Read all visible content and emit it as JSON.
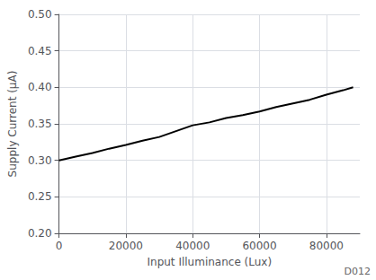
{
  "chart_data": {
    "type": "line",
    "x": [
      0,
      5000,
      10000,
      15000,
      20000,
      25000,
      30000,
      35000,
      40000,
      45000,
      50000,
      55000,
      60000,
      65000,
      70000,
      75000,
      80000,
      85000,
      88000
    ],
    "values": [
      0.3,
      0.305,
      0.31,
      0.316,
      0.321,
      0.327,
      0.332,
      0.34,
      0.348,
      0.352,
      0.358,
      0.362,
      0.367,
      0.373,
      0.378,
      0.383,
      0.39,
      0.396,
      0.4
    ],
    "color": "#000000",
    "xlabel": "Input Illuminance (Lux)",
    "ylabel": "Supply Current (μA)",
    "annotation": "D012",
    "xlim": [
      0,
      90000
    ],
    "ylim": [
      0.2,
      0.5
    ],
    "xticks": [
      0,
      20000,
      40000,
      60000,
      80000
    ],
    "yticks": [
      {
        "value": 0.2,
        "label": "0.20"
      },
      0.25,
      {
        "value": 0.3,
        "label": "0.30"
      },
      0.35,
      {
        "value": 0.4,
        "label": "0.40"
      },
      0.45,
      {
        "value": 0.5,
        "label": "0.50"
      }
    ],
    "grid": true
  }
}
